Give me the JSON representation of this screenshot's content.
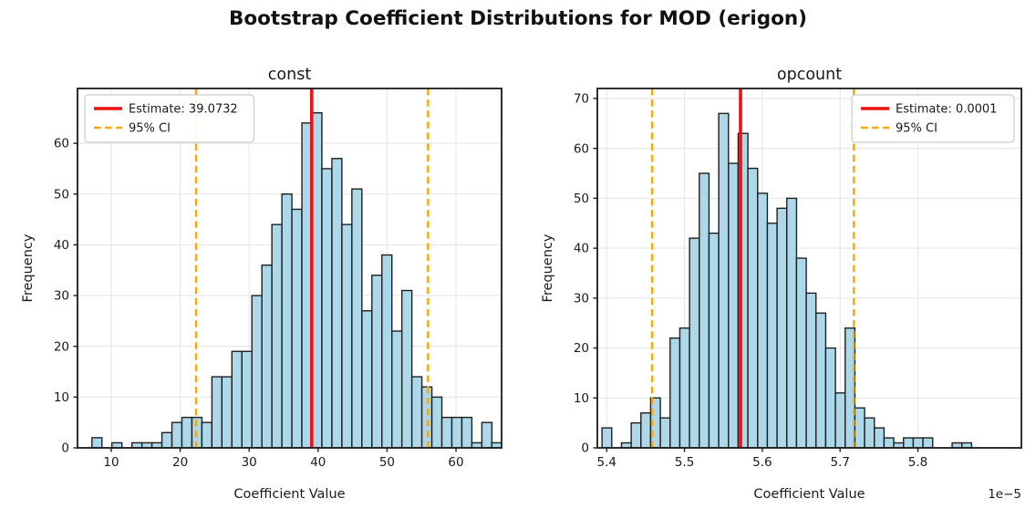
{
  "title": "Bootstrap Coefficient Distributions for MOD (erigon)",
  "colors": {
    "bar_fill": "#ACD8EA",
    "bar_edge": "#1f1f1f",
    "estimate_line": "#ee1111",
    "ci_line": "#FFA500",
    "grid": "#e6e6e6",
    "spine": "#1a1a1a",
    "legend_border": "#cccccc",
    "legend_bg": "#ffffff"
  },
  "chart_data": [
    {
      "type": "bar",
      "subtype": "histogram",
      "title": "const",
      "xlabel": "Coefficient Value",
      "ylabel": "Frequency",
      "bin_start": 7.2,
      "bin_width": 1.45,
      "frequencies": [
        2,
        0,
        1,
        0,
        1,
        1,
        1,
        3,
        5,
        6,
        6,
        5,
        14,
        14,
        19,
        19,
        30,
        36,
        44,
        50,
        47,
        64,
        66,
        55,
        57,
        44,
        51,
        27,
        34,
        38,
        23,
        31,
        14,
        12,
        10,
        6,
        6,
        6,
        1,
        5,
        1
      ],
      "estimate": {
        "label": "Estimate: 39.0732",
        "value": 39.0732
      },
      "ci": {
        "label": "95% CI",
        "lower": 22.31,
        "upper": 55.94
      },
      "xlim": [
        5.11,
        66.61
      ],
      "ylim": [
        0,
        70.8
      ],
      "xticks": [
        10,
        20,
        30,
        40,
        50,
        60
      ],
      "yticks": [
        0,
        10,
        20,
        30,
        40,
        50,
        60
      ],
      "grid": true,
      "legend_position": "upper-left",
      "offset_label": ""
    },
    {
      "type": "bar",
      "subtype": "histogram",
      "title": "opcount",
      "xlabel": "Coefficient Value",
      "ylabel": "Frequency",
      "bin_start": 5.394,
      "bin_width": 0.0125,
      "frequencies": [
        4,
        0,
        1,
        5,
        7,
        10,
        6,
        22,
        24,
        42,
        55,
        43,
        67,
        57,
        63,
        56,
        51,
        45,
        48,
        50,
        38,
        31,
        27,
        20,
        11,
        24,
        8,
        6,
        4,
        2,
        1,
        2,
        2,
        2,
        0,
        0,
        1,
        1
      ],
      "estimate": {
        "label": "Estimate: 0.0001",
        "value": 5.572
      },
      "ci": {
        "label": "95% CI",
        "lower": 5.4585,
        "upper": 5.7177
      },
      "xlim": [
        5.388,
        5.933
      ],
      "ylim": [
        0,
        72
      ],
      "xticks": [
        5.4,
        5.5,
        5.6,
        5.7,
        5.8
      ],
      "yticks": [
        0,
        10,
        20,
        30,
        40,
        50,
        60,
        70
      ],
      "grid": true,
      "legend_position": "upper-right",
      "offset_label": "1e−5"
    }
  ]
}
